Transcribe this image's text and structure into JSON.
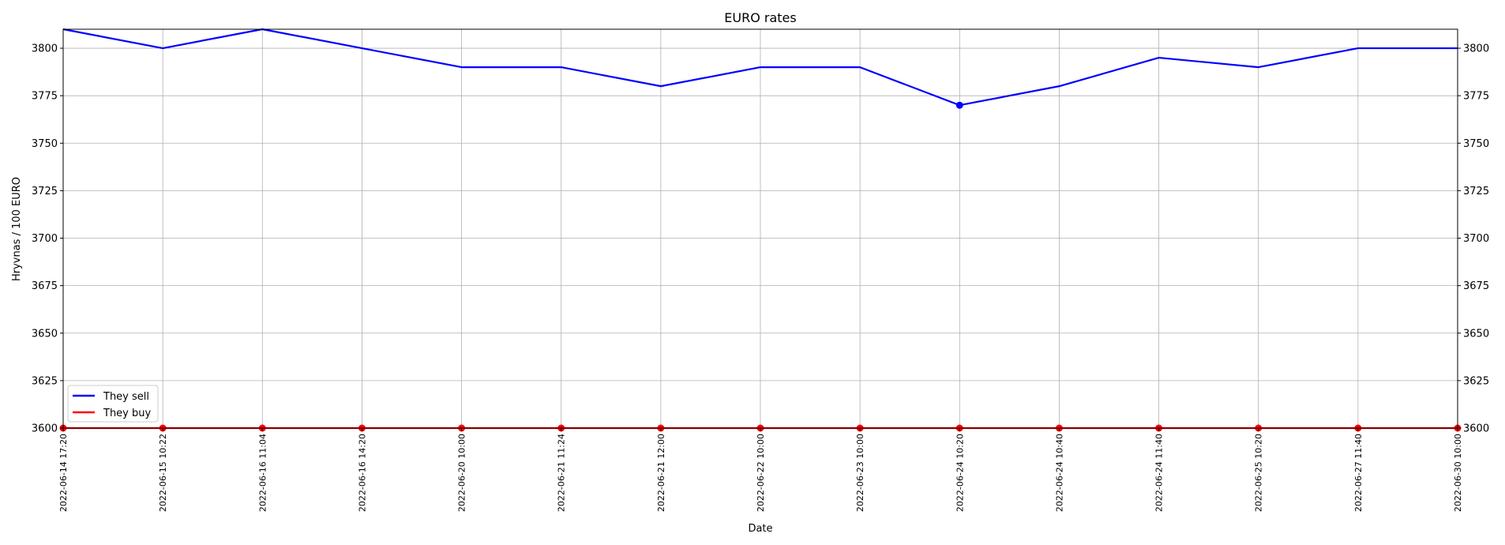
{
  "chart_data": {
    "type": "line",
    "title": "EURO rates",
    "xlabel": "Date",
    "ylabel": "Hryvnas / 100 EURO",
    "ylim": [
      3600,
      3810
    ],
    "yticks": [
      3600,
      3625,
      3650,
      3675,
      3700,
      3725,
      3750,
      3775,
      3800
    ],
    "grid": true,
    "legend_position": "lower-left",
    "categories": [
      "2022-06-14 17:20",
      "2022-06-15 10:22",
      "2022-06-16 11:04",
      "2022-06-16 14:20",
      "2022-06-20 10:00",
      "2022-06-21 11:24",
      "2022-06-21 12:00",
      "2022-06-22 10:00",
      "2022-06-23 10:00",
      "2022-06-24 10:20",
      "2022-06-24 10:40",
      "2022-06-24 11:40",
      "2022-06-25 10:20",
      "2022-06-27 11:40",
      "2022-06-30 10:00"
    ],
    "series": [
      {
        "name": "They sell",
        "color": "#0000ff",
        "values": [
          3810,
          3800,
          3810,
          3800,
          3790,
          3790,
          3780,
          3790,
          3790,
          3770,
          3780,
          3795,
          3790,
          3800,
          3800
        ],
        "marker_indices": [
          9
        ]
      },
      {
        "name": "They buy",
        "color": "#ff0000",
        "values": [
          3600,
          3600,
          3600,
          3600,
          3600,
          3600,
          3600,
          3600,
          3600,
          3600,
          3600,
          3600,
          3600,
          3600,
          3600
        ],
        "marker_indices": [
          0,
          1,
          2,
          3,
          4,
          5,
          6,
          7,
          8,
          9,
          10,
          11,
          12,
          13,
          14
        ]
      }
    ]
  }
}
